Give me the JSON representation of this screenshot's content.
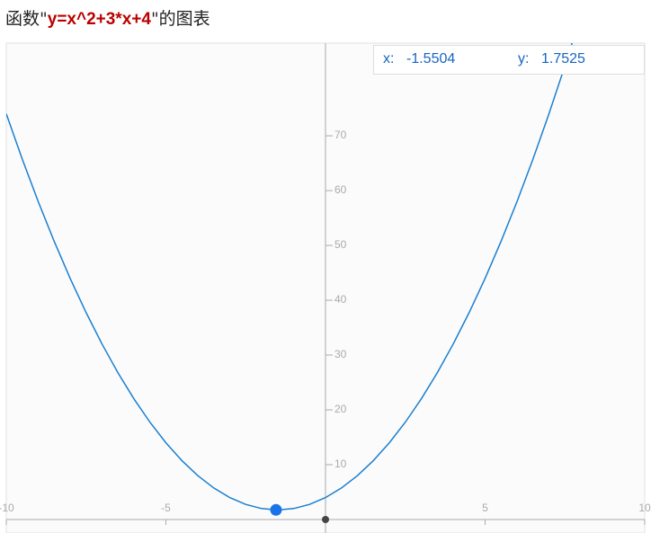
{
  "header": {
    "title_prefix": "函数\"",
    "formula": "y=x^2+3*x+4",
    "title_suffix": "\"的图表"
  },
  "tooltip": {
    "x_label": "x:",
    "x_value": "-1.5504",
    "y_label": "y:",
    "y_value": "1.7525"
  },
  "chart_data": {
    "type": "line",
    "x": [
      -10,
      -9.5,
      -9,
      -8.5,
      -8,
      -7.5,
      -7,
      -6.5,
      -6,
      -5.5,
      -5,
      -4.5,
      -4,
      -3.5,
      -3,
      -2.5,
      -2,
      -1.5,
      -1,
      -0.5,
      0,
      0.5,
      1,
      1.5,
      2,
      2.5,
      3,
      3.5,
      4,
      4.5,
      5,
      5.5,
      6,
      6.5,
      7,
      7.5,
      8
    ],
    "series": [
      {
        "name": "y=x^2+3*x+4",
        "color": "#1a7fd0",
        "values": [
          74,
          65.75,
          58,
          50.75,
          44,
          37.75,
          32,
          26.75,
          22,
          17.75,
          14,
          10.75,
          8,
          5.75,
          4,
          2.75,
          2,
          1.75,
          2,
          2.75,
          4,
          5.75,
          8,
          10.75,
          14,
          17.75,
          22,
          26.75,
          32,
          37.75,
          44,
          50.75,
          58,
          65.75,
          74,
          82.75,
          92
        ]
      }
    ],
    "point": {
      "x": -1.5504,
      "y": 1.7525,
      "color": "#1a73e8"
    },
    "xlim": [
      -10,
      10
    ],
    "ylim": [
      -2.46,
      86.9
    ],
    "xticks": [
      -10,
      -5,
      5,
      10
    ],
    "yticks": [
      10,
      20,
      30,
      40,
      50,
      60,
      70
    ]
  }
}
